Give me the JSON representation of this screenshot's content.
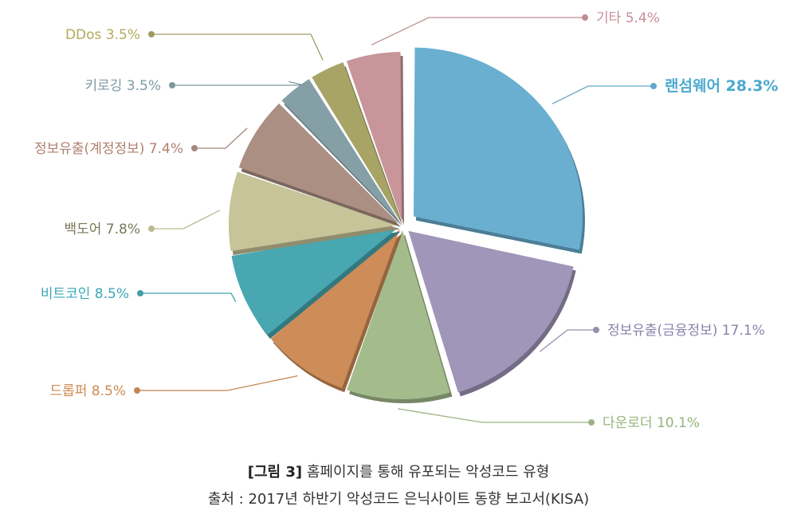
{
  "chart_data": {
    "type": "pie",
    "slices": [
      {
        "label": "랜섬웨어",
        "value": 28.3,
        "value_label": "28.3%",
        "color": "#6aafd0",
        "text_color": "#4ca9cf"
      },
      {
        "label": "정보유출(금융정보)",
        "value": 17.1,
        "value_label": "17.1%",
        "color": "#a096b9",
        "text_color": "#8a82ad"
      },
      {
        "label": "다운로더",
        "value": 10.1,
        "value_label": "10.1%",
        "color": "#a4bb8c",
        "text_color": "#96b37a"
      },
      {
        "label": "드롭퍼",
        "value": 8.5,
        "value_label": "8.5%",
        "color": "#cd8c58",
        "text_color": "#cc8a52"
      },
      {
        "label": "비트코인",
        "value": 8.5,
        "value_label": "8.5%",
        "color": "#48a7b0",
        "text_color": "#3aa7b7"
      },
      {
        "label": "백도어",
        "value": 7.8,
        "value_label": "7.8%",
        "color": "#c6c498",
        "text_color": "#787858"
      },
      {
        "label": "정보유출(계정정보)",
        "value": 7.4,
        "value_label": "7.4%",
        "color": "#ab8f83",
        "text_color": "#b07f6e"
      },
      {
        "label": "키로깅",
        "value": 3.5,
        "value_label": "3.5%",
        "color": "#849fa5",
        "text_color": "#7e9aa4"
      },
      {
        "label": "DDos",
        "value": 3.5,
        "value_label": "3.5%",
        "color": "#a8a465",
        "text_color": "#b3a85a"
      },
      {
        "label": "기타",
        "value": 5.4,
        "value_label": "5.4%",
        "color": "#c8959a",
        "text_color": "#c98d98"
      }
    ]
  },
  "caption": {
    "figure_label": "[그림 3]",
    "title": "홈페이지를 통해 유포되는 악성코드 유형",
    "source": "출처 : 2017년 하반기 악성코드 은닉사이트 동향 보고서(KISA)"
  }
}
